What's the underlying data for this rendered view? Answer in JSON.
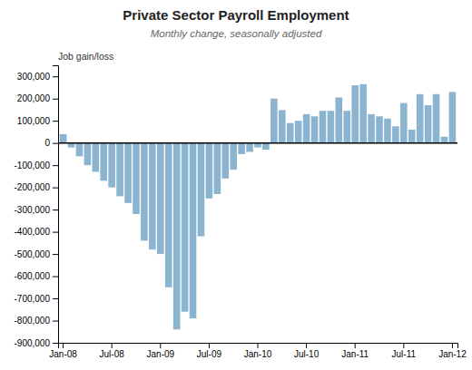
{
  "chart_data": {
    "type": "bar",
    "title": "Private Sector Payroll Employment",
    "subtitle": "Monthly change, seasonally adjusted",
    "ylabel": "Job gain/loss",
    "categories": [
      "Jan-08",
      null,
      null,
      null,
      null,
      null,
      "Jul-08",
      null,
      null,
      null,
      null,
      null,
      "Jan-09",
      null,
      null,
      null,
      null,
      null,
      "Jul-09",
      null,
      null,
      null,
      null,
      null,
      "Jan-10",
      null,
      null,
      null,
      null,
      null,
      "Jul-10",
      null,
      null,
      null,
      null,
      null,
      "Jan-11",
      null,
      null,
      null,
      null,
      null,
      "Jul-11",
      null,
      null,
      null,
      null,
      null,
      "Jan-12"
    ],
    "values": [
      40000,
      -20000,
      -60000,
      -100000,
      -130000,
      -170000,
      -200000,
      -240000,
      -270000,
      -320000,
      -440000,
      -480000,
      -500000,
      -650000,
      -840000,
      -760000,
      -790000,
      -420000,
      -250000,
      -230000,
      -160000,
      -120000,
      -50000,
      -40000,
      -20000,
      -30000,
      200000,
      148000,
      90000,
      100000,
      130000,
      120000,
      145000,
      145000,
      205000,
      145000,
      260000,
      265000,
      130000,
      120000,
      110000,
      75000,
      180000,
      60000,
      220000,
      170000,
      220000,
      28000,
      230000
    ],
    "color": "#8ab4d0",
    "ylim": [
      -900000,
      350000
    ],
    "yticks": [
      {
        "value": -900000,
        "label": "-900,000"
      },
      {
        "value": -800000,
        "label": "-800,000"
      },
      {
        "value": -700000,
        "label": "-700,000"
      },
      {
        "value": -600000,
        "label": "-600,000"
      },
      {
        "value": -500000,
        "label": "-500,000"
      },
      {
        "value": -400000,
        "label": "-400,000"
      },
      {
        "value": -300000,
        "label": "-300,000"
      },
      {
        "value": -200000,
        "label": "-200,000"
      },
      {
        "value": -100000,
        "label": "-100,000"
      },
      0,
      {
        "value": 100000,
        "label": "100,000"
      },
      {
        "value": 200000,
        "label": "200,000"
      },
      {
        "value": 300000,
        "label": "300,000"
      }
    ],
    "grid": false
  }
}
